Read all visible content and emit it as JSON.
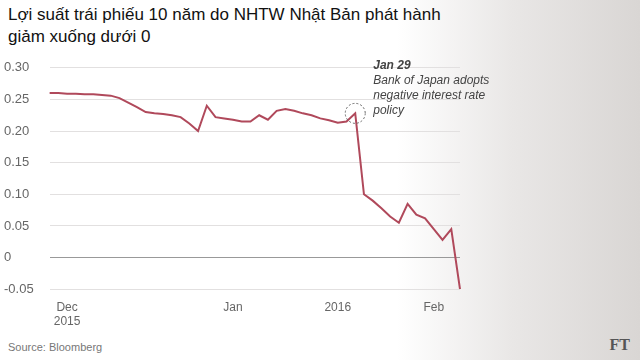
{
  "chart_data": {
    "type": "line",
    "title": "Lợi suất trái phiếu 10 năm do NHTW Nhật Bản phát hành giảm xuống dưới 0",
    "source": "Source: Bloomberg",
    "credit": "FT",
    "categories": [
      null,
      null,
      "Dec 2015",
      null,
      null,
      null,
      null,
      null,
      null,
      null,
      null,
      null,
      null,
      null,
      null,
      null,
      null,
      null,
      null,
      null,
      null,
      "Jan",
      null,
      null,
      null,
      null,
      null,
      null,
      null,
      null,
      null,
      null,
      null,
      "2016",
      null,
      null,
      null,
      null,
      null,
      null,
      null,
      null,
      null,
      null,
      "Feb",
      null,
      null,
      null
    ],
    "values": [
      0.26,
      0.26,
      0.259,
      0.259,
      0.258,
      0.258,
      0.257,
      0.256,
      0.252,
      0.245,
      0.238,
      0.23,
      0.228,
      0.227,
      0.225,
      0.222,
      0.212,
      0.2,
      0.24,
      0.222,
      0.22,
      0.218,
      0.215,
      0.215,
      0.225,
      0.218,
      0.232,
      0.235,
      0.232,
      0.228,
      0.225,
      0.22,
      0.217,
      0.213,
      0.215,
      0.228,
      0.1,
      0.09,
      0.078,
      0.065,
      0.055,
      0.085,
      0.068,
      0.062,
      0.045,
      0.028,
      0.045,
      -0.05
    ],
    "color": "#b0495b",
    "line_style": "solid",
    "ylim": [
      -0.05,
      0.3
    ],
    "yticks": [
      {
        "value": 0.3,
        "label": "0.30"
      },
      0.25,
      {
        "value": 0.2,
        "label": "0.20"
      },
      0.15,
      {
        "value": 0.1,
        "label": "0.10"
      },
      0.05,
      0,
      -0.05
    ],
    "grid": true,
    "annotations": [
      {
        "title": "Jan 29",
        "text": "Bank of Japan adopts negative interest rate policy"
      }
    ]
  }
}
